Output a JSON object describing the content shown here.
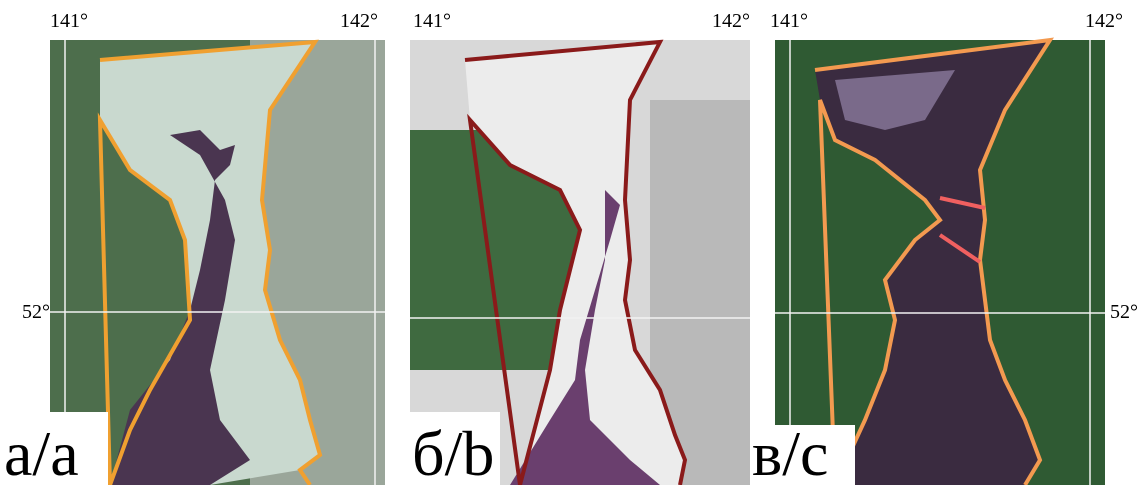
{
  "panels": [
    {
      "label": "а/a",
      "lon_labels": [
        "141°",
        "142°"
      ],
      "lat_label": "52°"
    },
    {
      "label": "б/b",
      "lon_labels": [
        "141°",
        "142°"
      ]
    },
    {
      "label": "в/с",
      "lon_labels": [
        "141°",
        "142°"
      ],
      "lat_label": "52°"
    }
  ]
}
